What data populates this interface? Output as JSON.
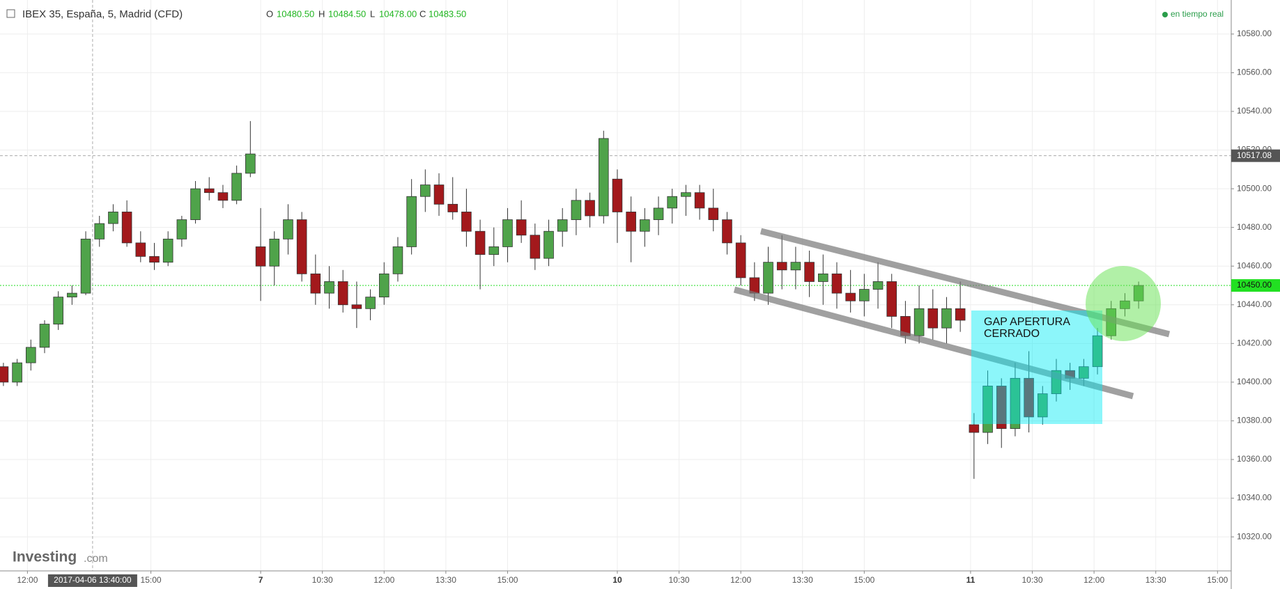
{
  "header": {
    "symbol": "IBEX 35, España, 5, Madrid (CFD)",
    "ohlc": [
      {
        "label": "O",
        "value": "10480.50"
      },
      {
        "label": "H",
        "value": "10484.50"
      },
      {
        "label": "L",
        "value": "10478.00"
      },
      {
        "label": "C",
        "value": "10483.50"
      }
    ],
    "status": "en tiempo real"
  },
  "logo": {
    "brand": "Investing",
    "suffix": ".com"
  },
  "chart_data": {
    "type": "candlestick",
    "up_color": "#4fa34a",
    "down_color": "#a3191c",
    "x": [
      1,
      5,
      9,
      13,
      17,
      21,
      25,
      29,
      33,
      37,
      41,
      45,
      49,
      53,
      57,
      61,
      65,
      69,
      73,
      76,
      80,
      84,
      88,
      92,
      96,
      100,
      104,
      108,
      112,
      116,
      120,
      124,
      128,
      132,
      136,
      140,
      144,
      148,
      152,
      156,
      160,
      164,
      168,
      172,
      176,
      180,
      184,
      188,
      192,
      196,
      200,
      204,
      208,
      212,
      216,
      220,
      224,
      228,
      232,
      236,
      240,
      244,
      248,
      252,
      256,
      260,
      264,
      268,
      272,
      276,
      280,
      284,
      288,
      292,
      296,
      300,
      304,
      308,
      312,
      316,
      320,
      324,
      328,
      332
    ],
    "open": [
      10408,
      10400,
      10410,
      10418,
      10430,
      10444,
      10446,
      10474,
      10482,
      10488,
      10472,
      10465,
      10462,
      10474,
      10484,
      10500,
      10498,
      10494,
      10508,
      10470,
      10460,
      10474,
      10484,
      10456,
      10446,
      10452,
      10440,
      10438,
      10444,
      10456,
      10470,
      10496,
      10502,
      10492,
      10488,
      10478,
      10466,
      10470,
      10484,
      10476,
      10464,
      10478,
      10484,
      10494,
      10486,
      10505,
      10488,
      10478,
      10484,
      10490,
      10496,
      10498,
      10490,
      10484,
      10472,
      10454,
      10446,
      10462,
      10458,
      10462,
      10452,
      10456,
      10446,
      10442,
      10448,
      10452,
      10434,
      10424,
      10438,
      10428,
      10438,
      10378,
      10374,
      10398,
      10376,
      10402,
      10382,
      10394,
      10406,
      10402,
      10408,
      10424,
      10438,
      10442
    ],
    "high": [
      10410,
      10412,
      10422,
      10432,
      10447,
      10450,
      10478,
      10486,
      10492,
      10494,
      10478,
      10472,
      10478,
      10486,
      10504,
      10506,
      10502,
      10512,
      10535,
      10490,
      10478,
      10492,
      10488,
      10466,
      10460,
      10458,
      10452,
      10448,
      10462,
      10475,
      10505,
      10510,
      10508,
      10506,
      10500,
      10484,
      10480,
      10490,
      10494,
      10482,
      10484,
      10490,
      10500,
      10498,
      10530,
      10510,
      10496,
      10490,
      10496,
      10500,
      10502,
      10502,
      10500,
      10488,
      10476,
      10462,
      10470,
      10476,
      10470,
      10468,
      10466,
      10462,
      10458,
      10456,
      10462,
      10456,
      10442,
      10450,
      10448,
      10444,
      10452,
      10384,
      10406,
      10402,
      10410,
      10416,
      10398,
      10412,
      10410,
      10412,
      10428,
      10442,
      10446,
      10452
    ],
    "low": [
      10398,
      10398,
      10406,
      10415,
      10427,
      10440,
      10445,
      10470,
      10478,
      10470,
      10462,
      10458,
      10460,
      10470,
      10482,
      10494,
      10490,
      10492,
      10506,
      10442,
      10450,
      10466,
      10452,
      10440,
      10438,
      10436,
      10428,
      10432,
      10440,
      10452,
      10466,
      10488,
      10486,
      10484,
      10470,
      10448,
      10460,
      10462,
      10472,
      10458,
      10460,
      10470,
      10476,
      10480,
      10482,
      10472,
      10462,
      10470,
      10476,
      10482,
      10486,
      10484,
      10478,
      10466,
      10450,
      10442,
      10440,
      10448,
      10448,
      10444,
      10440,
      10438,
      10436,
      10434,
      10438,
      10428,
      10420,
      10420,
      10422,
      10420,
      10426,
      10350,
      10368,
      10366,
      10372,
      10374,
      10378,
      10390,
      10396,
      10398,
      10404,
      10422,
      10434,
      10438
    ],
    "close": [
      10400,
      10410,
      10418,
      10430,
      10444,
      10446,
      10474,
      10482,
      10488,
      10472,
      10465,
      10462,
      10474,
      10484,
      10500,
      10498,
      10494,
      10508,
      10518,
      10460,
      10474,
      10484,
      10456,
      10446,
      10452,
      10440,
      10438,
      10444,
      10456,
      10470,
      10496,
      10502,
      10492,
      10488,
      10478,
      10466,
      10470,
      10484,
      10476,
      10464,
      10478,
      10484,
      10494,
      10486,
      10526,
      10488,
      10478,
      10484,
      10490,
      10496,
      10498,
      10490,
      10484,
      10472,
      10454,
      10446,
      10462,
      10458,
      10462,
      10452,
      10456,
      10446,
      10442,
      10448,
      10452,
      10434,
      10424,
      10438,
      10428,
      10438,
      10432,
      10374,
      10398,
      10376,
      10402,
      10382,
      10394,
      10406,
      10402,
      10408,
      10424,
      10438,
      10442,
      10450
    ],
    "xlim": [
      0,
      359
    ],
    "xticks": [
      {
        "value": 8,
        "label": "12:00"
      },
      {
        "value": 44,
        "label": "15:00"
      },
      {
        "value": 76,
        "label": "7"
      },
      {
        "value": 94,
        "label": "10:30"
      },
      {
        "value": 112,
        "label": "12:00"
      },
      {
        "value": 130,
        "label": "13:30"
      },
      {
        "value": 148,
        "label": "15:00"
      },
      {
        "value": 180,
        "label": "10"
      },
      {
        "value": 198,
        "label": "10:30"
      },
      {
        "value": 216,
        "label": "12:00"
      },
      {
        "value": 234,
        "label": "13:30"
      },
      {
        "value": 252,
        "label": "15:00"
      },
      {
        "value": 283,
        "label": "11"
      },
      {
        "value": 301,
        "label": "10:30"
      },
      {
        "value": 319,
        "label": "12:00"
      },
      {
        "value": 337,
        "label": "13:30"
      },
      {
        "value": 355,
        "label": "15:00"
      }
    ],
    "ylim": [
      10302.4,
      10597.6
    ],
    "yticks": [
      {
        "value": 10320,
        "label": "10320.00"
      },
      {
        "value": 10340,
        "label": "10340.00"
      },
      {
        "value": 10360,
        "label": "10360.00"
      },
      {
        "value": 10380,
        "label": "10380.00"
      },
      {
        "value": 10400,
        "label": "10400.00"
      },
      {
        "value": 10420,
        "label": "10420.00"
      },
      {
        "value": 10440,
        "label": "10440.00"
      },
      {
        "value": 10460,
        "label": "10460.00"
      },
      {
        "value": 10480,
        "label": "10480.00"
      },
      {
        "value": 10500,
        "label": "10500.00"
      },
      {
        "value": 10520,
        "label": "10520.00"
      },
      {
        "value": 10540,
        "label": "10540.00"
      },
      {
        "value": 10560,
        "label": "10560.00"
      },
      {
        "value": 10580,
        "label": "10580.00"
      }
    ],
    "grid": true,
    "crosshair": {
      "x": {
        "value": 27,
        "label": "2017-04-06 13:40:00"
      },
      "y": 10517.08
    },
    "last_price": {
      "value": 10450,
      "label": "10450.00"
    },
    "annotation": [
      "GAP APERTURA",
      "CERRADO"
    ]
  }
}
